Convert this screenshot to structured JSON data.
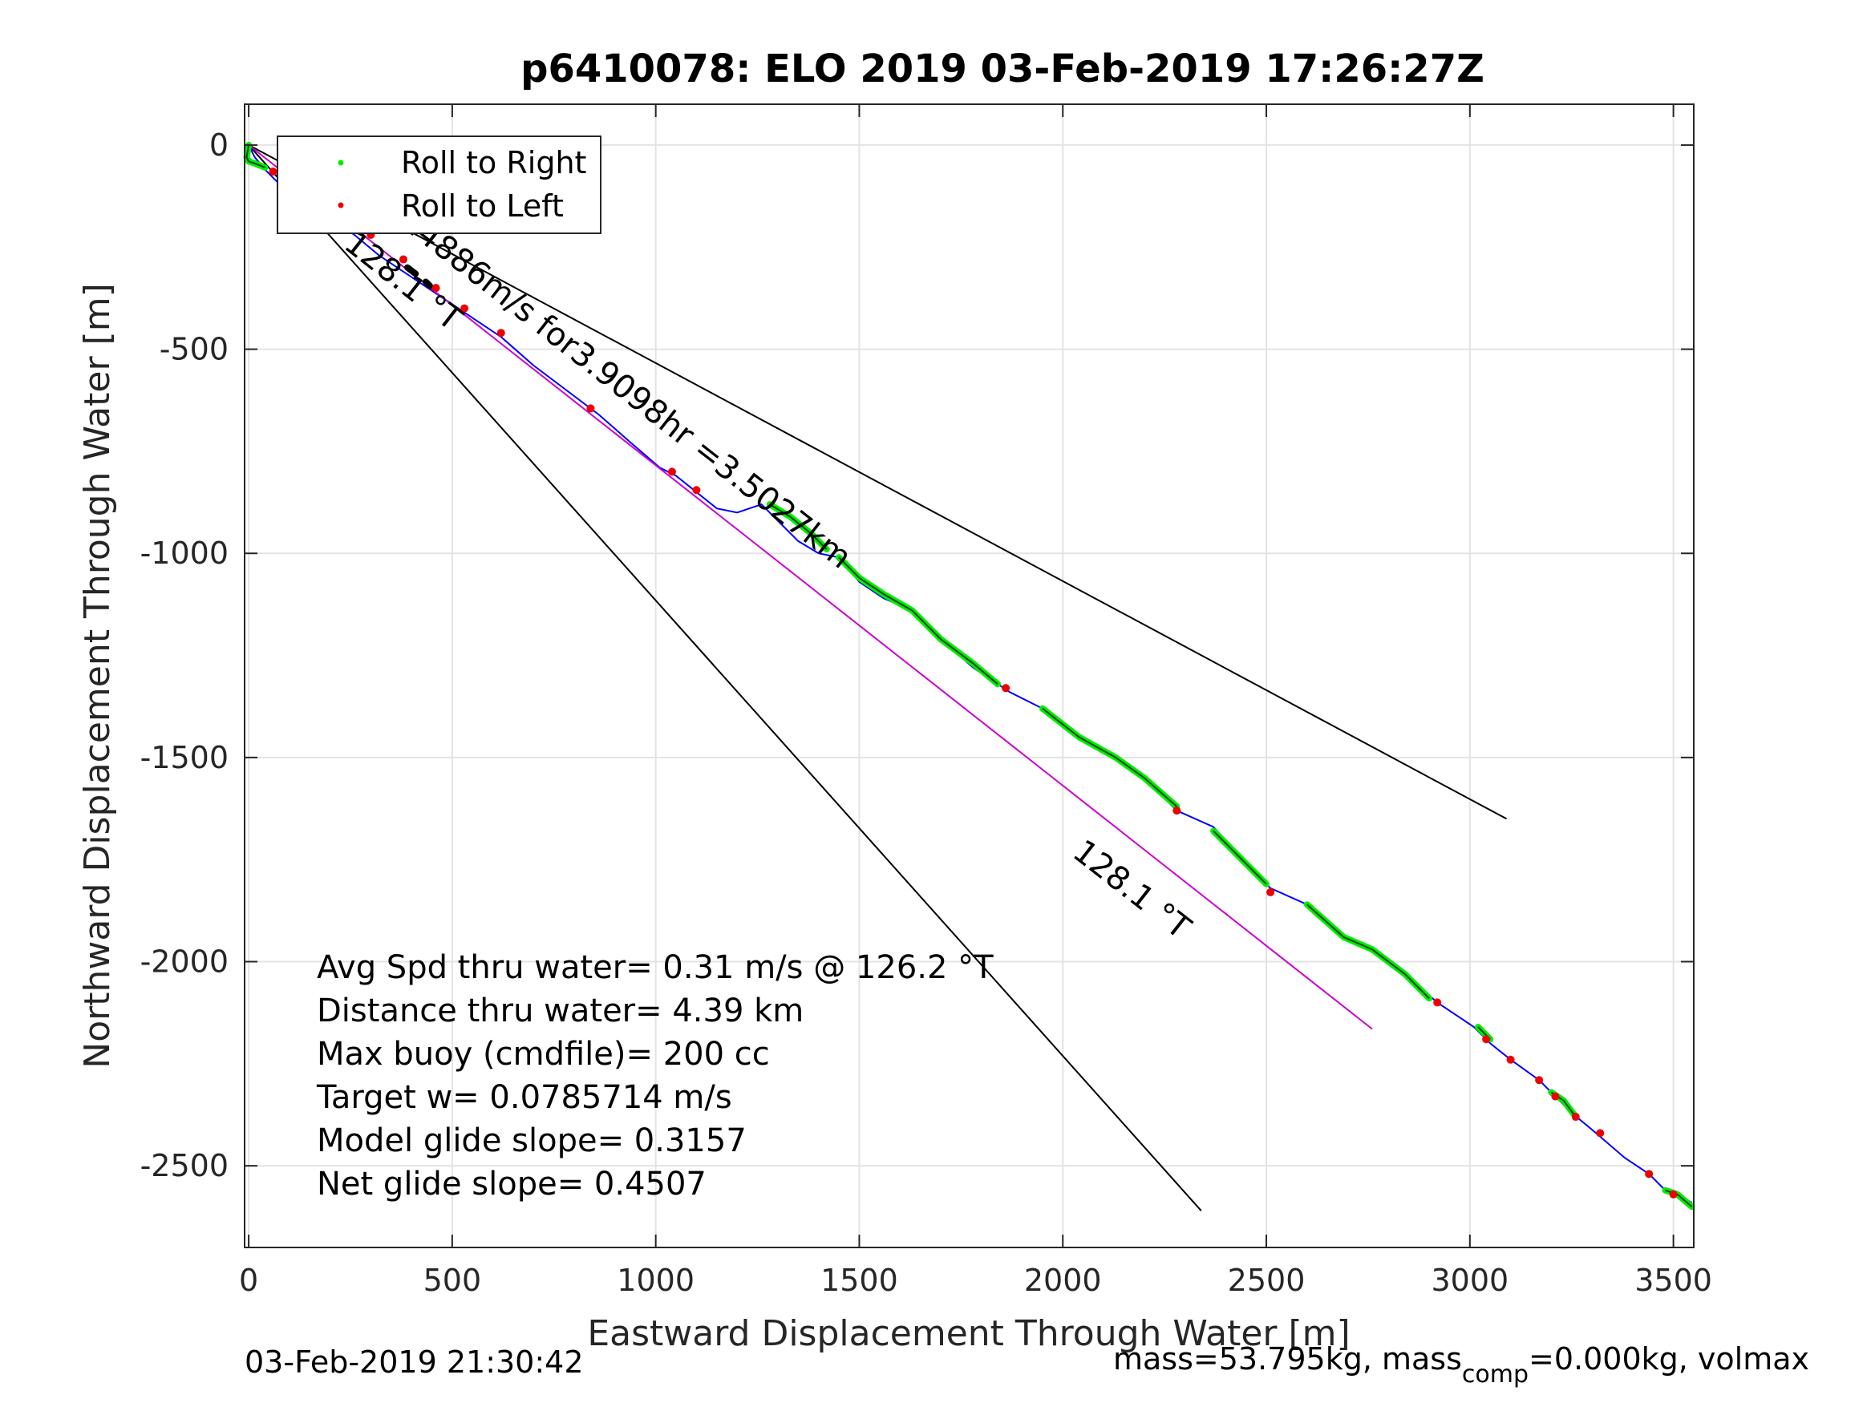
{
  "chart_data": {
    "type": "line",
    "title": "p6410078: ELO 2019 03-Feb-2019 17:26:27Z",
    "xlabel": "Eastward Displacement Through Water [m]",
    "ylabel": "Northward Displacement Through Water [m]",
    "xlim": [
      -10,
      3550
    ],
    "ylim": [
      -2700,
      100
    ],
    "xticks": [
      0,
      500,
      1000,
      1500,
      2000,
      2500,
      3000,
      3500
    ],
    "xtick_labels": [
      "0",
      "500",
      "1000",
      "1500",
      "2000",
      "2500",
      "3000",
      "3500"
    ],
    "yticks": [
      0,
      -500,
      -1000,
      -1500,
      -2000,
      -2500
    ],
    "ytick_labels": [
      "0",
      "-500",
      "-1000",
      "-1500",
      "-2000",
      "-2500"
    ],
    "grid": true,
    "legend_position": "top-left",
    "legend": [
      {
        "label": "Roll to Right",
        "color": "#00ee00"
      },
      {
        "label": "Roll to Left",
        "color": "#ee0000"
      }
    ],
    "series": [
      {
        "color": "#0000ff",
        "x": [
          0,
          15,
          40,
          80,
          130,
          200,
          260,
          320,
          380,
          440,
          500,
          560,
          620,
          700,
          780,
          860,
          940,
          1010,
          1050,
          1100,
          1150,
          1200,
          1260,
          1300,
          1350,
          1400,
          1450,
          1500,
          1560,
          1630,
          1700,
          1780,
          1840,
          1870,
          1950,
          2040,
          2130,
          2200,
          2280,
          2370,
          2450,
          2510,
          2600,
          2690,
          2760,
          2840,
          2920,
          3010,
          3050,
          3100,
          3170,
          3210,
          3250,
          3310,
          3380,
          3440,
          3480,
          3510,
          3545
        ],
        "y": [
          0,
          -30,
          -60,
          -100,
          -140,
          -180,
          -220,
          -270,
          -310,
          -350,
          -390,
          -430,
          -470,
          -540,
          -600,
          -660,
          -730,
          -790,
          -810,
          -850,
          -890,
          -900,
          -880,
          -920,
          -970,
          -1000,
          -1010,
          -1070,
          -1110,
          -1140,
          -1210,
          -1280,
          -1320,
          -1340,
          -1380,
          -1450,
          -1500,
          -1550,
          -1630,
          -1670,
          -1760,
          -1820,
          -1860,
          -1940,
          -1970,
          -2030,
          -2100,
          -2160,
          -2200,
          -2240,
          -2290,
          -2330,
          -2370,
          -2420,
          -2480,
          -2520,
          -2560,
          -2570,
          -2590
        ]
      },
      {
        "color": "#cc00cc",
        "x": [
          0,
          2760
        ],
        "y": [
          0,
          -2165
        ]
      }
    ],
    "green_segments": [
      {
        "x": [
          0,
          -5,
          0,
          15,
          40
        ],
        "y": [
          0,
          -30,
          -40,
          -45,
          -55
        ]
      },
      {
        "x": [
          1280,
          1330,
          1380,
          1420
        ],
        "y": [
          -880,
          -910,
          -950,
          -990
        ]
      },
      {
        "x": [
          1450,
          1500,
          1560,
          1630,
          1700,
          1780,
          1840
        ],
        "y": [
          -1010,
          -1060,
          -1100,
          -1140,
          -1210,
          -1270,
          -1320
        ]
      },
      {
        "x": [
          1950,
          2040,
          2130,
          2200,
          2280
        ],
        "y": [
          -1380,
          -1450,
          -1500,
          -1550,
          -1620
        ]
      },
      {
        "x": [
          2370,
          2450,
          2500
        ],
        "y": [
          -1680,
          -1760,
          -1810
        ]
      },
      {
        "x": [
          2600,
          2690,
          2760,
          2840,
          2900
        ],
        "y": [
          -1860,
          -1940,
          -1970,
          -2030,
          -2090
        ]
      },
      {
        "x": [
          3020,
          3050
        ],
        "y": [
          -2160,
          -2190
        ]
      },
      {
        "x": [
          3200,
          3230,
          3260
        ],
        "y": [
          -2320,
          -2340,
          -2380
        ]
      },
      {
        "x": [
          3480,
          3510,
          3545
        ],
        "y": [
          -2560,
          -2570,
          -2600
        ]
      }
    ],
    "red_points": {
      "x": [
        60,
        160,
        200,
        300,
        380,
        460,
        530,
        620,
        840,
        1040,
        1100,
        1860,
        2280,
        2510,
        2920,
        3040,
        3100,
        3170,
        3210,
        3260,
        3320,
        3440,
        3500
      ],
      "y": [
        -65,
        -140,
        -170,
        -220,
        -280,
        -350,
        -400,
        -460,
        -645,
        -800,
        -845,
        -1330,
        -1630,
        -1830,
        -2100,
        -2190,
        -2240,
        -2290,
        -2330,
        -2380,
        -2420,
        -2520,
        -2570
      ]
    },
    "black_lines": [
      {
        "x": [
          0,
          3090
        ],
        "y": [
          0,
          -1650
        ]
      },
      {
        "x": [
          0,
          2340
        ],
        "y": [
          0,
          -2610
        ]
      }
    ],
    "black_segments": [
      {
        "x": [
          80,
          100
        ],
        "y": [
          -95,
          -110
        ]
      },
      {
        "x": [
          390,
          410
        ],
        "y": [
          -300,
          -315
        ]
      },
      {
        "x": [
          435,
          445
        ],
        "y": [
          -335,
          -345
        ]
      }
    ],
    "annotations": [
      {
        "text": "0.24886m/s for3.9098hr =3.5027km",
        "x": 310,
        "y": -150,
        "rotation": 38
      },
      {
        "text": "128.1 °T",
        "x": 230,
        "y": -250,
        "rotation": 38
      },
      {
        "text": "128.1 °T",
        "x": 2020,
        "y": -1740,
        "rotation": 38
      }
    ],
    "stats": [
      "Avg Spd thru water=  0.31 m/s @ 126.2 °T",
      "Distance thru water=  4.39 km",
      "Max buoy (cmdfile)= 200 cc",
      "Target w= 0.0785714 m/s",
      "Model glide slope= 0.3157",
      "Net glide slope= 0.4507"
    ],
    "footer_left": "03-Feb-2019 21:30:42",
    "footer_right_prefix": "mass=53.795kg, mass",
    "footer_right_sub": "comp",
    "footer_right_suffix": "=0.000kg, volmax"
  }
}
